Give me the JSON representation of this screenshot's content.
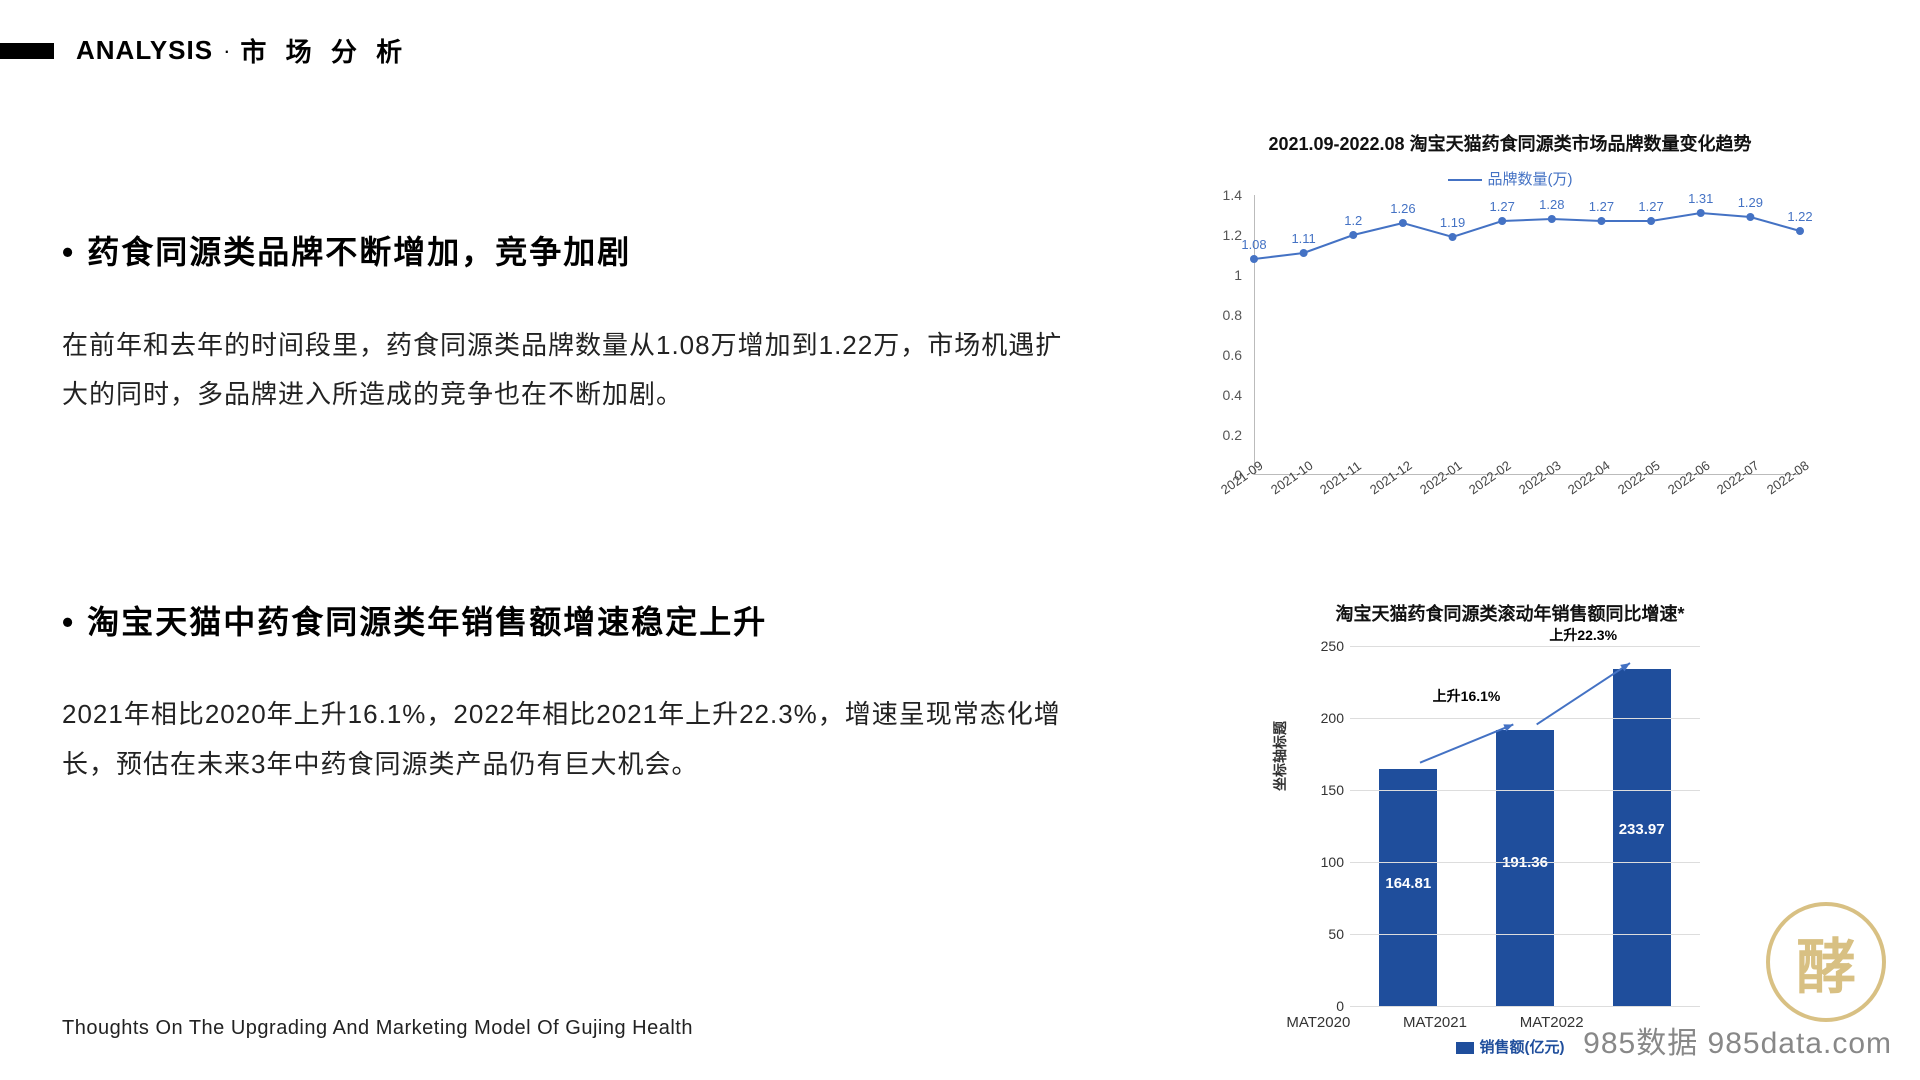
{
  "header": {
    "title_en": "ANALYSIS",
    "title_cn": "市 场 分 析"
  },
  "sections": [
    {
      "title": "药食同源类品牌不断增加，竞争加剧",
      "body": "在前年和去年的时间段里，药食同源类品牌数量从1.08万增加到1.22万，市场机遇扩大的同时，多品牌进入所造成的竞争也在不断加剧。"
    },
    {
      "title": "淘宝天猫中药食同源类年销售额增速稳定上升",
      "body": "2021年相比2020年上升16.1%，2022年相比2021年上升22.3%，增速呈现常态化增长，预估在未来3年中药食同源类产品仍有巨大机会。"
    }
  ],
  "line_chart": {
    "type": "line",
    "title": "2021.09-2022.08 淘宝天猫药食同源类市场品牌数量变化趋势",
    "legend": "品牌数量(万)",
    "line_color": "#4472c4",
    "marker_color": "#4472c4",
    "marker_style": "circle",
    "marker_size": 4,
    "line_width": 2,
    "categories": [
      "2021-09",
      "2021-10",
      "2021-11",
      "2021-12",
      "2022-01",
      "2022-02",
      "2022-03",
      "2022-04",
      "2022-05",
      "2022-06",
      "2022-07",
      "2022-08"
    ],
    "values": [
      1.08,
      1.11,
      1.2,
      1.26,
      1.19,
      1.27,
      1.28,
      1.27,
      1.27,
      1.31,
      1.29,
      1.22
    ],
    "ylim": [
      0,
      1.4
    ],
    "ytick_step": 0.2,
    "label_fontsize": 13,
    "background_color": "#ffffff",
    "grid_color": "#dddddd",
    "axis_color": "#bbbbbb"
  },
  "bar_chart": {
    "type": "bar",
    "title": "淘宝天猫药食同源类滚动年销售额同比增速*",
    "categories": [
      "MAT2020",
      "MAT2021",
      "MAT2022"
    ],
    "values": [
      164.81,
      191.36,
      233.97
    ],
    "bar_color": "#1f4e9c",
    "bar_width": 0.5,
    "ylim": [
      0,
      250
    ],
    "ytick_step": 50,
    "ylabel": "坐标轴标题",
    "legend": "销售额(亿元)",
    "value_label_color": "#ffffff",
    "grid_color": "#dddddd",
    "annotations": [
      {
        "text": "上升16.1%",
        "between": [
          0,
          1
        ]
      },
      {
        "text": "上升22.3%",
        "between": [
          1,
          2
        ]
      }
    ],
    "arrow_color": "#4472c4"
  },
  "footer": "Thoughts On The Upgrading And Marketing Model Of Gujing Health",
  "watermark": "985数据 985data.com",
  "logo_text": "酵"
}
